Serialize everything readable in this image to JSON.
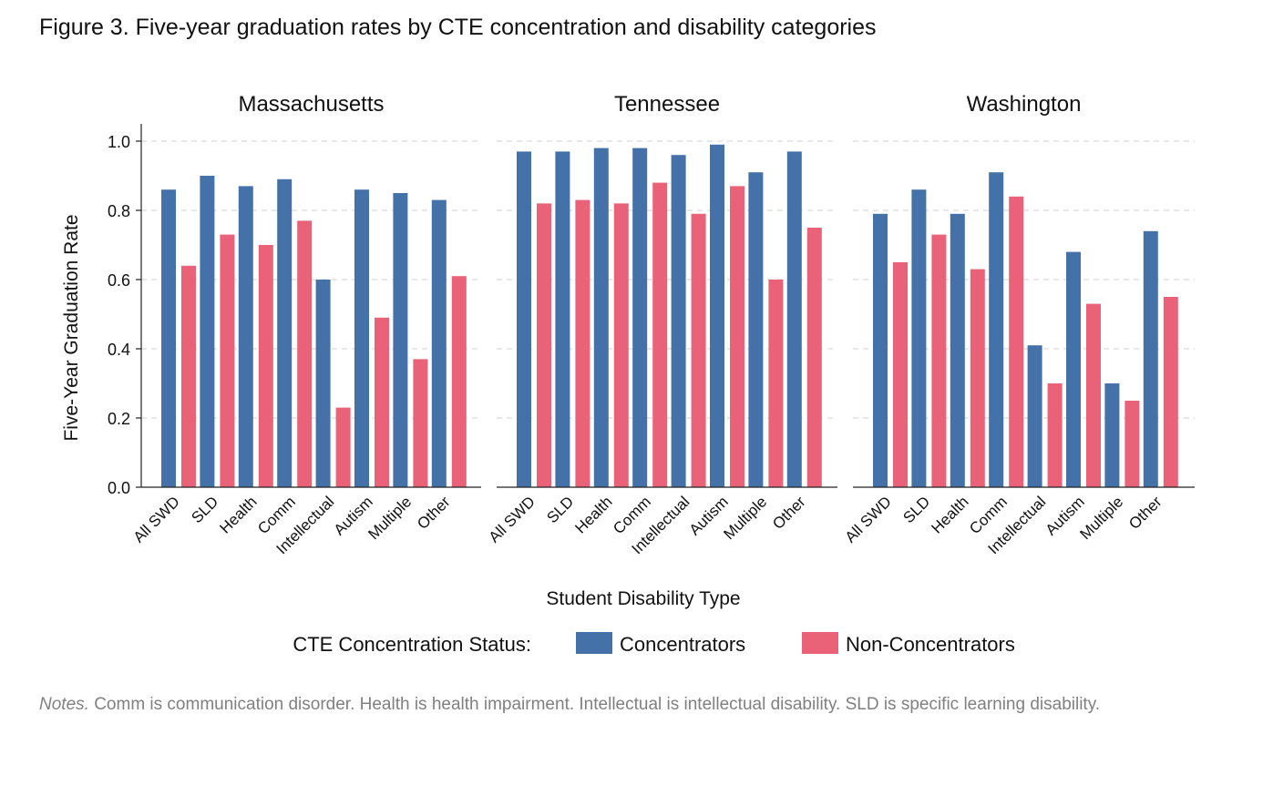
{
  "figure": {
    "title": "Figure 3. Five-year graduation rates by CTE concentration and disability categories",
    "notes_label": "Notes.",
    "notes_text": " Comm is communication disorder. Health is health impairment. Intellectual is intellectual disability. SLD is specific learning disability."
  },
  "legend": {
    "title": "CTE Concentration Status:",
    "items": [
      "Concentrators",
      "Non-Concentrators"
    ]
  },
  "colors": {
    "concentrators": "#4472a8",
    "non_concentrators": "#ea6277"
  },
  "chart_data": {
    "type": "bar",
    "xlabel": "Student Disability Type",
    "ylabel": "Five-Year Graduation Rate",
    "ylim": [
      0,
      1.05
    ],
    "yticks": [
      "0.0",
      "0.2",
      "0.4",
      "0.6",
      "0.8",
      "1.0"
    ],
    "grid": "horizontal dashed",
    "legend_position": "bottom",
    "categories": [
      "All SWD",
      "SLD",
      "Health",
      "Comm",
      "Intellectual",
      "Autism",
      "Multiple",
      "Other"
    ],
    "panels": [
      {
        "title": "Massachusetts",
        "series": [
          {
            "name": "Concentrators",
            "values": [
              0.86,
              0.9,
              0.87,
              0.89,
              0.6,
              0.86,
              0.85,
              0.83
            ]
          },
          {
            "name": "Non-Concentrators",
            "values": [
              0.64,
              0.73,
              0.7,
              0.77,
              0.23,
              0.49,
              0.37,
              0.61
            ]
          }
        ]
      },
      {
        "title": "Tennessee",
        "series": [
          {
            "name": "Concentrators",
            "values": [
              0.97,
              0.97,
              0.98,
              0.98,
              0.96,
              0.99,
              0.91,
              0.97
            ]
          },
          {
            "name": "Non-Concentrators",
            "values": [
              0.82,
              0.83,
              0.82,
              0.88,
              0.79,
              0.87,
              0.6,
              0.75
            ]
          }
        ]
      },
      {
        "title": "Washington",
        "series": [
          {
            "name": "Concentrators",
            "values": [
              0.79,
              0.86,
              0.79,
              0.91,
              0.41,
              0.68,
              0.3,
              0.74
            ]
          },
          {
            "name": "Non-Concentrators",
            "values": [
              0.65,
              0.73,
              0.63,
              0.84,
              0.3,
              0.53,
              0.25,
              0.55
            ]
          }
        ]
      }
    ]
  }
}
